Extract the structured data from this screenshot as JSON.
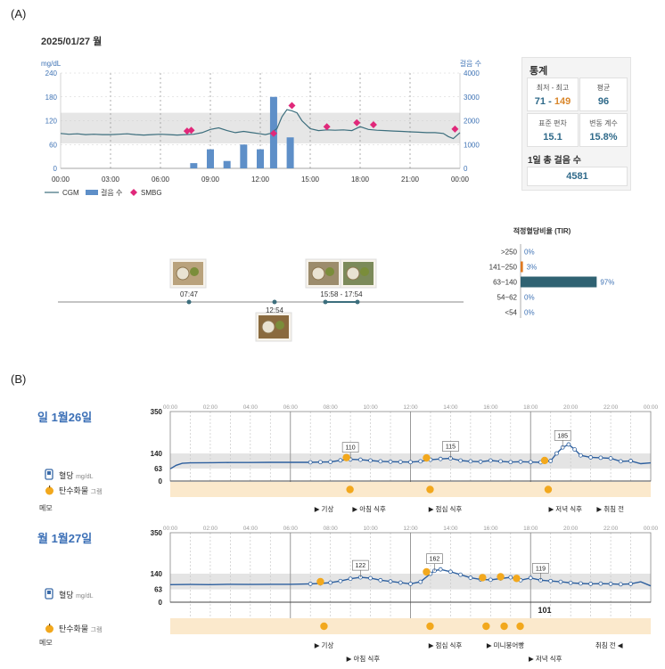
{
  "panel_a": {
    "panel_label": "(A)",
    "date": "2025/01/27 월",
    "left_axis_unit": "mg/dL",
    "right_axis_unit": "걸음 수",
    "legend": {
      "cgm": "CGM",
      "steps": "걸음 수",
      "smbg": "SMBG"
    },
    "stats": {
      "title": "통계",
      "minmax_label": "최저 - 최고",
      "min": "71",
      "sep": " - ",
      "max": "149",
      "mean_label": "평균",
      "mean": "96",
      "sd_label": "표준 편차",
      "sd": "15.1",
      "cv_label": "변동 계수",
      "cv": "15.8%",
      "steps_label": "1일 총 걸음 수",
      "steps_total": "4581"
    },
    "meals": {
      "m1": "07:47",
      "m2": "12:54",
      "m3": "15:58 - 17:54"
    },
    "tir": {
      "title": "적정혈당비율 (TIR)",
      "rows": [
        {
          "range": ">250",
          "pct": "0%"
        },
        {
          "range": "141~250",
          "pct": "3%"
        },
        {
          "range": "63~140",
          "pct": "97%"
        },
        {
          "range": "54~62",
          "pct": "0%"
        },
        {
          "range": "<54",
          "pct": "0%"
        }
      ]
    }
  },
  "panel_b": {
    "panel_label": "(B)",
    "side": {
      "glucose": "혈당",
      "glucose_unit": "mg/dL",
      "carb": "탄수화물",
      "carb_unit": "그램",
      "memo": "메모"
    },
    "days": [
      {
        "title": "일 1월26일",
        "events_row1": [
          "기상",
          "점심 식후",
          "저녁 식후",
          "취침 전"
        ],
        "events_row2": [
          "아침 식후"
        ]
      },
      {
        "title": "월 1월27일",
        "total_carbs": "101",
        "events_row1": [
          "기상",
          "점심 식후",
          "미니붕어빵",
          "취침 전"
        ],
        "events_row2": [
          "아침 식후",
          "저녁 식후"
        ]
      }
    ]
  },
  "chart_data": [
    {
      "type": "line",
      "title": "2025/01/27 월 CGM / 걸음 수 / SMBG",
      "xlabel": "",
      "ylabel": "mg/dL",
      "y2label": "걸음 수",
      "xlim": [
        0,
        24
      ],
      "ylim": [
        0,
        240
      ],
      "y2lim": [
        0,
        4000
      ],
      "x_ticks": [
        "00:00",
        "03:00",
        "06:00",
        "09:00",
        "12:00",
        "15:00",
        "18:00",
        "21:00",
        "00:00"
      ],
      "y_ticks": [
        "0",
        "60",
        "120",
        "180",
        "240"
      ],
      "y2_ticks": [
        "0",
        "1000",
        "2000",
        "3000",
        "4000"
      ],
      "target_band": [
        63,
        140
      ],
      "series": [
        {
          "name": "CGM",
          "x": [
            0,
            0.5,
            1,
            1.5,
            2,
            2.5,
            3,
            3.5,
            4,
            4.5,
            5,
            5.5,
            6,
            6.5,
            7,
            7.5,
            8,
            8.5,
            9,
            9.5,
            10,
            10.5,
            11,
            11.5,
            12,
            12.3,
            12.6,
            13,
            13.3,
            13.6,
            13.9,
            14.2,
            14.5,
            15,
            15.5,
            16,
            16.5,
            17,
            17.5,
            18,
            18.5,
            19,
            19.5,
            20,
            20.5,
            21,
            21.5,
            22,
            22.5,
            23,
            23.3,
            23.6,
            24
          ],
          "values": [
            88,
            86,
            87,
            85,
            86,
            85,
            85,
            86,
            87,
            85,
            84,
            85,
            86,
            85,
            84,
            85,
            86,
            90,
            98,
            102,
            95,
            90,
            93,
            90,
            87,
            85,
            88,
            100,
            130,
            148,
            145,
            140,
            120,
            100,
            95,
            97,
            96,
            97,
            95,
            105,
            98,
            96,
            95,
            94,
            93,
            92,
            91,
            90,
            90,
            88,
            80,
            75,
            90
          ]
        },
        {
          "name": "걸음 수",
          "type": "bar",
          "x": [
            8,
            9,
            10,
            11,
            12,
            12.8,
            13.8
          ],
          "values": [
            220,
            800,
            310,
            1000,
            800,
            3000,
            1300
          ]
        },
        {
          "name": "SMBG",
          "type": "scatter",
          "x": [
            7.6,
            7.85,
            12.8,
            13.9,
            16.0,
            17.8,
            18.8,
            23.7
          ],
          "values": [
            94,
            96,
            88,
            158,
            105,
            115,
            110,
            99
          ]
        }
      ]
    },
    {
      "type": "bar",
      "title": "적정혈당비율 (TIR)",
      "categories": [
        ">250",
        "141~250",
        "63~140",
        "54~62",
        "<54"
      ],
      "values": [
        0,
        3,
        97,
        0,
        0
      ]
    },
    {
      "type": "line",
      "title": "일 1월26일",
      "xlim": [
        0,
        24
      ],
      "ylim": [
        0,
        350
      ],
      "y_ticks": [
        "0",
        "63",
        "140",
        "350"
      ],
      "x_ticks": [
        "00:00",
        "02:00",
        "04:00",
        "06:00",
        "08:00",
        "10:00",
        "12:00",
        "14:00",
        "16:00",
        "18:00",
        "20:00",
        "22:00",
        "00:00"
      ],
      "target_band": [
        63,
        140
      ],
      "annotations": [
        {
          "x": 9.0,
          "label": "110"
        },
        {
          "x": 14.0,
          "label": "115"
        },
        {
          "x": 19.7,
          "label": "185"
        }
      ],
      "series": [
        {
          "name": "혈당",
          "x": [
            0,
            0.3,
            0.6,
            1,
            2,
            3,
            4,
            5,
            6,
            7,
            7.5,
            8,
            8.5,
            9,
            9.5,
            10,
            10.5,
            11,
            11.5,
            12,
            12.5,
            13,
            13.5,
            14,
            14.5,
            15,
            15.5,
            16,
            16.5,
            17,
            17.5,
            18,
            18.5,
            19,
            19.3,
            19.6,
            19.9,
            20.2,
            20.5,
            21,
            21.5,
            22,
            22.5,
            23,
            23.5,
            24
          ],
          "values": [
            62,
            80,
            90,
            92,
            93,
            94,
            94,
            95,
            95,
            95,
            96,
            97,
            105,
            110,
            108,
            104,
            100,
            98,
            97,
            96,
            100,
            108,
            112,
            115,
            104,
            100,
            98,
            104,
            100,
            96,
            98,
            96,
            95,
            102,
            140,
            170,
            185,
            160,
            130,
            120,
            118,
            115,
            100,
            102,
            88,
            92
          ]
        }
      ],
      "carbs_x": [
        8.8,
        12.8,
        18.7
      ]
    },
    {
      "type": "line",
      "title": "월 1월27일",
      "xlim": [
        0,
        24
      ],
      "ylim": [
        0,
        350
      ],
      "y_ticks": [
        "0",
        "63",
        "140",
        "350"
      ],
      "x_ticks": [
        "00:00",
        "02:00",
        "04:00",
        "06:00",
        "08:00",
        "10:00",
        "12:00",
        "14:00",
        "16:00",
        "18:00",
        "20:00",
        "22:00",
        "00:00"
      ],
      "target_band": [
        63,
        140
      ],
      "annotations": [
        {
          "x": 9.5,
          "label": "122"
        },
        {
          "x": 13.2,
          "label": "162"
        },
        {
          "x": 18.3,
          "label": "119"
        }
      ],
      "series": [
        {
          "name": "혈당",
          "x": [
            0,
            1,
            2,
            3,
            4,
            5,
            6,
            7,
            7.5,
            8,
            8.5,
            9,
            9.5,
            10,
            10.5,
            11,
            11.5,
            12,
            12.5,
            13,
            13.2,
            13.5,
            14,
            14.5,
            15,
            15.5,
            16,
            16.5,
            17,
            17.5,
            18,
            18.5,
            19,
            19.5,
            20,
            20.5,
            21,
            21.5,
            22,
            22.5,
            23,
            23.5,
            24
          ],
          "values": [
            86,
            87,
            86,
            88,
            87,
            88,
            88,
            90,
            92,
            96,
            104,
            115,
            122,
            118,
            108,
            102,
            96,
            90,
            100,
            140,
            155,
            162,
            150,
            135,
            120,
            112,
            110,
            116,
            122,
            108,
            119,
            108,
            104,
            100,
            95,
            92,
            90,
            91,
            90,
            88,
            90,
            100,
            80
          ]
        }
      ],
      "carbs_x": [
        7.5,
        12.8,
        15.6,
        16.5,
        17.3
      ]
    }
  ]
}
